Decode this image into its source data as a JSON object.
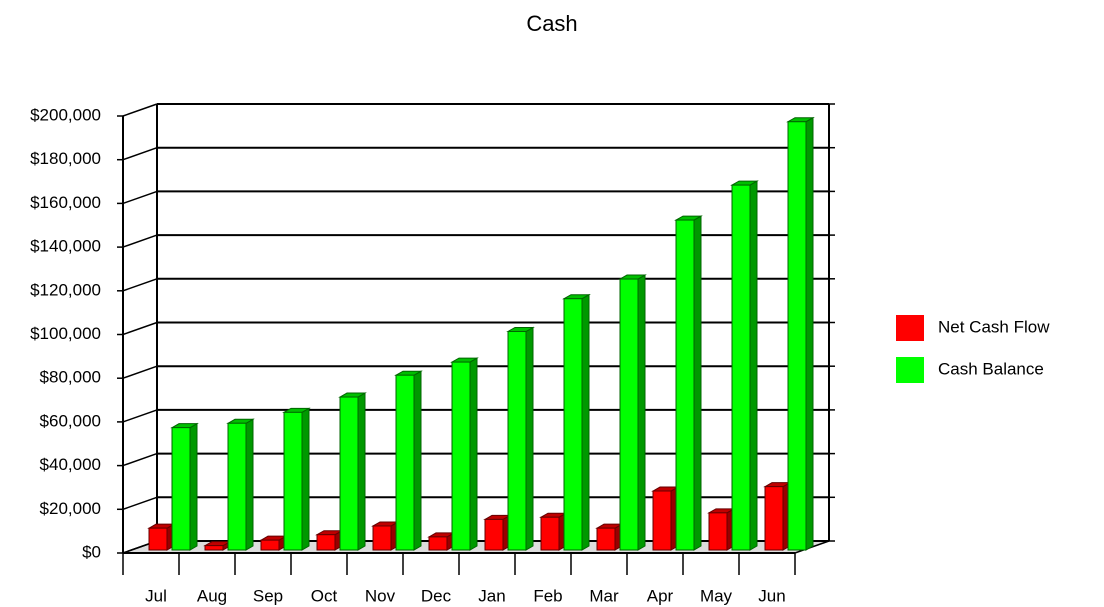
{
  "chart_data": {
    "type": "bar3d",
    "title": "Cash",
    "categories": [
      "Jul",
      "Aug",
      "Sep",
      "Oct",
      "Nov",
      "Dec",
      "Jan",
      "Feb",
      "Mar",
      "Apr",
      "May",
      "Jun"
    ],
    "series": [
      {
        "name": "Net Cash Flow",
        "color": "#ff0000",
        "values": [
          10000,
          2000,
          4500,
          7000,
          11000,
          6000,
          14000,
          15000,
          10000,
          27000,
          17000,
          29000
        ]
      },
      {
        "name": "Cash Balance",
        "color": "#00ff00",
        "values": [
          56000,
          58000,
          63000,
          70000,
          80000,
          86000,
          100000,
          115000,
          124000,
          151000,
          167000,
          196000
        ]
      }
    ],
    "ylim": [
      0,
      200000
    ],
    "yticks": [
      {
        "value": 0,
        "label": "$0"
      },
      {
        "value": 20000,
        "label": "$20,000"
      },
      {
        "value": 40000,
        "label": "$40,000"
      },
      {
        "value": 60000,
        "label": "$60,000"
      },
      {
        "value": 80000,
        "label": "$80,000"
      },
      {
        "value": 100000,
        "label": "$100,000"
      },
      {
        "value": 120000,
        "label": "$120,000"
      },
      {
        "value": 140000,
        "label": "$140,000"
      },
      {
        "value": 160000,
        "label": "$160,000"
      },
      {
        "value": 180000,
        "label": "$180,000"
      },
      {
        "value": 200000,
        "label": "$200,000"
      }
    ],
    "grid": true,
    "legend": "right"
  }
}
